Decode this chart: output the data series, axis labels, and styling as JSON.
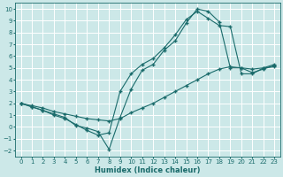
{
  "xlabel": "Humidex (Indice chaleur)",
  "bg_color": "#cce8e8",
  "grid_color": "#b8d8d8",
  "line_color": "#1a6b6b",
  "xlim": [
    -0.5,
    23.5
  ],
  "ylim": [
    -2.5,
    10.5
  ],
  "xticks": [
    0,
    1,
    2,
    3,
    4,
    5,
    6,
    7,
    8,
    9,
    10,
    11,
    12,
    13,
    14,
    15,
    16,
    17,
    18,
    19,
    20,
    21,
    22,
    23
  ],
  "yticks": [
    -2,
    -1,
    0,
    1,
    2,
    3,
    4,
    5,
    6,
    7,
    8,
    9,
    10
  ],
  "line1_x": [
    0,
    1,
    2,
    3,
    4,
    5,
    6,
    7,
    8,
    9,
    10,
    11,
    12,
    13,
    14,
    15,
    16,
    17,
    18,
    19,
    20,
    21,
    22,
    23
  ],
  "line1_y": [
    2.0,
    1.8,
    1.6,
    1.3,
    1.1,
    0.9,
    0.7,
    0.6,
    0.5,
    0.7,
    1.2,
    1.6,
    2.0,
    2.5,
    3.0,
    3.5,
    4.0,
    4.5,
    4.9,
    5.1,
    5.0,
    4.9,
    5.0,
    5.1
  ],
  "line2_x": [
    0,
    1,
    2,
    3,
    4,
    5,
    6,
    7,
    8,
    9,
    10,
    11,
    12,
    13,
    14,
    15,
    16,
    17,
    18,
    19,
    20,
    21,
    22,
    23
  ],
  "line2_y": [
    2.0,
    1.7,
    1.4,
    1.1,
    0.8,
    0.1,
    -0.1,
    -0.4,
    -1.9,
    0.8,
    3.2,
    4.8,
    5.3,
    6.5,
    7.3,
    8.8,
    10.0,
    9.8,
    8.9,
    5.0,
    5.0,
    4.6,
    4.9,
    5.2
  ],
  "line3_x": [
    0,
    1,
    2,
    3,
    4,
    5,
    6,
    7,
    8,
    9,
    10,
    11,
    12,
    13,
    14,
    15,
    16,
    17,
    18,
    19,
    20,
    21,
    22,
    23
  ],
  "line3_y": [
    2.0,
    1.7,
    1.4,
    1.0,
    0.7,
    0.2,
    -0.3,
    -0.7,
    -0.5,
    3.0,
    4.5,
    5.3,
    5.8,
    6.7,
    7.8,
    9.1,
    9.8,
    9.2,
    8.6,
    8.5,
    4.5,
    4.5,
    5.0,
    5.3
  ]
}
